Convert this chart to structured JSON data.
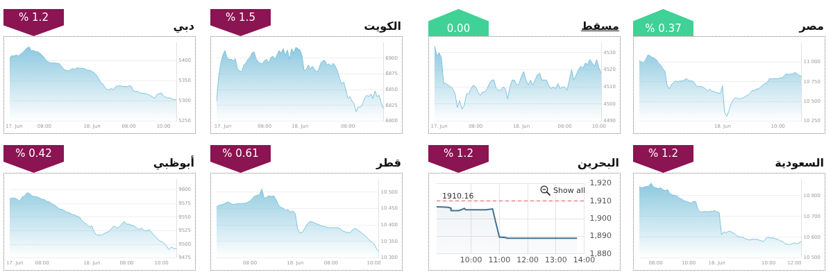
{
  "chart_data": [
    {
      "type": "area",
      "title": "دبي",
      "annotations": [
        "% 1.2"
      ],
      "categories": [
        null,
        null,
        "17. Jun",
        null,
        null,
        null,
        null,
        null,
        null,
        null,
        null,
        null,
        null,
        null,
        null,
        null,
        "08:00",
        null,
        null,
        null,
        null,
        null,
        null,
        null,
        null,
        null,
        null,
        null,
        null,
        null,
        null,
        null,
        null,
        null,
        null,
        null,
        null,
        null,
        "18. Jun",
        null,
        null,
        null,
        null,
        null,
        null,
        null,
        null,
        null,
        null,
        null,
        null,
        null,
        null,
        null,
        null,
        "08:00",
        null,
        null,
        null,
        null,
        null,
        null,
        null,
        null,
        null,
        null,
        null,
        null,
        null,
        null,
        null,
        "10:00",
        null,
        null,
        null,
        null,
        null,
        null
      ],
      "values": [
        5407,
        5412,
        5411,
        5414,
        5411,
        5416,
        5420,
        5426,
        5431,
        5434,
        5424,
        5425,
        5422,
        5422,
        5418,
        5413,
        5407,
        5399,
        5396,
        5394,
        5394,
        5394,
        5393,
        5392,
        5385,
        5378,
        5376,
        5374,
        5377,
        5380,
        5378,
        5382,
        5381,
        5381,
        5381,
        5378,
        5376,
        5376,
        5373,
        5370,
        5364,
        5356,
        5346,
        5342,
        5333,
        5328,
        5328,
        5331,
        5328,
        5336,
        5337,
        5338,
        5336,
        5336,
        5335,
        5337,
        5337,
        5327,
        5323,
        5324,
        5320,
        5319,
        5319,
        5318,
        5316,
        5313,
        5310,
        5307,
        5316,
        5318,
        5320,
        5313,
        5309,
        5307,
        5308,
        5305,
        5303,
        5303
      ],
      "color": "#80c3dc",
      "ylim": [
        5250,
        5445
      ],
      "yticks": [
        5250,
        5300,
        5350,
        5400
      ],
      "grid": "y"
    },
    {
      "type": "area",
      "title": "الكويت",
      "annotations": [
        "% 1.5"
      ],
      "categories": [
        null,
        null,
        null,
        "17. Jun",
        null,
        null,
        null,
        null,
        null,
        null,
        null,
        null,
        null,
        null,
        null,
        null,
        null,
        null,
        null,
        null,
        null,
        null,
        null,
        "08:00",
        null,
        null,
        null,
        null,
        null,
        null,
        null,
        null,
        null,
        null,
        null,
        null,
        null,
        null,
        null,
        null,
        "18. Jun",
        null,
        null,
        null,
        null,
        null,
        null,
        null,
        null,
        null,
        null,
        null,
        null,
        null,
        null,
        null,
        null,
        null,
        null,
        null,
        null,
        null,
        null,
        "08:00",
        null,
        null,
        null,
        null,
        null,
        null,
        null,
        null,
        null,
        null,
        null,
        null,
        null,
        null,
        null,
        null,
        null
      ],
      "values": [
        6832,
        6871,
        6892,
        6905,
        6912,
        6901,
        6898,
        6898,
        6896,
        6899,
        6883,
        6880,
        6878,
        6889,
        6892,
        6898,
        6901,
        6908,
        6910,
        6899,
        6894,
        6892,
        6891,
        6896,
        6898,
        6892,
        6901,
        6903,
        6898,
        6905,
        6912,
        6908,
        6915,
        6904,
        6913,
        6898,
        6915,
        6908,
        6917,
        6915,
        6913,
        6904,
        6880,
        6882,
        6889,
        6883,
        6887,
        6882,
        6878,
        6882,
        6892,
        6896,
        6896,
        6889,
        6891,
        6887,
        6892,
        6887,
        6880,
        6868,
        6859,
        6862,
        6850,
        6836,
        6839,
        6832,
        6827,
        6815,
        6823,
        6822,
        6827,
        6836,
        6841,
        6839,
        6843,
        6836,
        6848,
        6839,
        6841,
        6829,
        6820
      ],
      "color": "#80c3dc",
      "ylim": [
        6800,
        6925
      ],
      "yticks": [
        6800,
        6825,
        6850,
        6875,
        6900
      ],
      "grid": "y"
    },
    {
      "type": "area",
      "title": "مسقط",
      "annotations": [
        "0.00"
      ],
      "categories": [
        null,
        null,
        "17. Jun",
        null,
        null,
        null,
        null,
        null,
        null,
        null,
        null,
        null,
        null,
        null,
        null,
        null,
        null,
        null,
        "08:00",
        null,
        null,
        null,
        null,
        null,
        null,
        null,
        null,
        null,
        null,
        null,
        null,
        null,
        null,
        null,
        null,
        null,
        null,
        null,
        "18. Jun",
        null,
        null,
        null,
        null,
        null,
        null,
        null,
        null,
        null,
        null,
        null,
        null,
        null,
        null,
        null,
        null,
        null,
        null,
        "08:00",
        null,
        null,
        null,
        null,
        null,
        null,
        null,
        null,
        null,
        null,
        null,
        null,
        null,
        null,
        "10:00",
        null
      ],
      "values": [
        4534,
        4528,
        4530,
        4527,
        4512,
        4512,
        4511,
        4510,
        4509,
        4506,
        4498,
        4502,
        4497,
        4499,
        4506,
        4506,
        4509,
        4511,
        4510,
        4507,
        4505,
        4507,
        4507,
        4509,
        4512,
        4514,
        4514,
        4509,
        4508,
        4508,
        4510,
        4509,
        4503,
        4510,
        4514,
        4514,
        4511,
        4512,
        4516,
        4519,
        4514,
        4511,
        4514,
        4511,
        4514,
        4517,
        4518,
        4514,
        4514,
        4514,
        4511,
        4509,
        4510,
        4509,
        4512,
        4509,
        4510,
        4510,
        4508,
        4514,
        4520,
        4514,
        4517,
        4520,
        4522,
        4521,
        4524,
        4523,
        4526,
        4524,
        4522,
        4526,
        4521,
        4518
      ],
      "color": "#80c3dc",
      "ylim": [
        4490,
        4536
      ],
      "yticks": [
        4490,
        4500,
        4510,
        4520,
        4530
      ],
      "grid": "y"
    },
    {
      "type": "area",
      "title": "مصر",
      "annotations": [
        "% 0.37"
      ],
      "categories": [
        null,
        null,
        null,
        null,
        null,
        null,
        null,
        null,
        null,
        null,
        null,
        null,
        null,
        null,
        null,
        null,
        null,
        null,
        null,
        null,
        null,
        null,
        null,
        null,
        null,
        null,
        null,
        null,
        null,
        null,
        null,
        null,
        null,
        null,
        null,
        null,
        null,
        null,
        null,
        "18. Jun",
        null,
        null,
        null,
        null,
        null,
        null,
        null,
        null,
        null,
        null,
        null,
        null,
        null,
        null,
        null,
        null,
        null,
        null,
        null,
        null,
        null,
        null,
        null,
        null,
        null,
        "10:00",
        null,
        null,
        null,
        null,
        null,
        null,
        null,
        null,
        null,
        null,
        null
      ],
      "values": [
        11020,
        11000,
        10990,
        11030,
        11090,
        11080,
        11060,
        11050,
        11030,
        10990,
        10960,
        10920,
        10880,
        10710,
        10660,
        10710,
        10740,
        10760,
        10750,
        10760,
        10760,
        10770,
        10790,
        10770,
        10760,
        10760,
        10730,
        10690,
        10690,
        10690,
        10680,
        10660,
        10630,
        10660,
        10630,
        10630,
        10610,
        10610,
        10600,
        10700,
        10360,
        10310,
        10380,
        10470,
        10520,
        10550,
        10540,
        10530,
        10540,
        10550,
        10570,
        10580,
        10610,
        10640,
        10640,
        10660,
        10660,
        10690,
        10710,
        10730,
        10740,
        10790,
        10790,
        10790,
        10790,
        10790,
        10800,
        10800,
        10830,
        10850,
        10840,
        10850,
        10850,
        10870,
        10850,
        10830,
        10820
      ],
      "color": "#80c3dc",
      "ylim": [
        10250,
        11250
      ],
      "yticks": [
        {
          "value": 10250,
          "label": "10 250"
        },
        {
          "value": 10500,
          "label": "10 500"
        },
        {
          "value": 10750,
          "label": "10 750"
        },
        {
          "value": 11000,
          "label": "11 000"
        }
      ],
      "grid": "y"
    },
    {
      "type": "area",
      "title": "أبوظبي",
      "annotations": [
        "% 0.42"
      ],
      "categories": [
        null,
        null,
        "17. Jun",
        null,
        null,
        null,
        null,
        null,
        null,
        null,
        null,
        null,
        null,
        "08:00",
        null,
        null,
        null,
        null,
        null,
        null,
        null,
        null,
        null,
        null,
        null,
        null,
        null,
        null,
        null,
        null,
        null,
        null,
        null,
        "18. Jun",
        null,
        null,
        null,
        null,
        null,
        null,
        null,
        null,
        null,
        null,
        null,
        null,
        null,
        "08:00",
        null,
        null,
        null,
        null,
        null,
        null,
        null,
        null,
        null,
        null,
        null,
        null,
        null,
        "10:00",
        null,
        null,
        null,
        null,
        null,
        null
      ],
      "values": [
        9584,
        9585,
        9585,
        9583,
        9579,
        9587,
        9589,
        9595,
        9593,
        9589,
        9588,
        9587,
        9585,
        9583,
        9582,
        9579,
        9578,
        9574,
        9572,
        9569,
        9565,
        9564,
        9562,
        9559,
        9558,
        9555,
        9554,
        9552,
        9550,
        9544,
        9540,
        9536,
        9532,
        9534,
        9522,
        9517,
        9517,
        9517,
        9520,
        9522,
        9524,
        9530,
        9534,
        9530,
        9532,
        9537,
        9542,
        9537,
        9537,
        9535,
        9534,
        9530,
        9527,
        9530,
        9525,
        9525,
        9527,
        9522,
        9517,
        9512,
        9507,
        9505,
        9502,
        9497,
        9490,
        9495,
        9492,
        9492
      ],
      "color": "#80c3dc",
      "ylim": [
        9475,
        9620
      ],
      "yticks": [
        9475,
        9500,
        9525,
        9550,
        9575,
        9600
      ],
      "grid": "y"
    },
    {
      "type": "area",
      "title": "قطر",
      "annotations": [
        "% 0.61"
      ],
      "categories": [
        null,
        null,
        null,
        null,
        null,
        null,
        null,
        null,
        null,
        null,
        null,
        null,
        null,
        null,
        "08:00",
        null,
        null,
        null,
        null,
        null,
        null,
        null,
        null,
        null,
        null,
        null,
        null,
        null,
        null,
        null,
        null,
        null,
        null,
        "18. Jun",
        null,
        null,
        null,
        null,
        null,
        null,
        null,
        null,
        null,
        null,
        null,
        null,
        null,
        null,
        "08:00",
        null,
        null,
        null,
        null,
        null,
        null,
        null,
        null,
        null,
        null,
        null,
        null,
        null,
        null,
        null,
        null,
        null,
        "10:00",
        null,
        null
      ],
      "values": [
        10456,
        10460,
        10462,
        10464,
        10468,
        10471,
        10465,
        10463,
        10464,
        10465,
        10465,
        10466,
        10466,
        10469,
        10473,
        10481,
        10488,
        10490,
        10493,
        10510,
        10481,
        10485,
        10489,
        10487,
        10489,
        10477,
        10460,
        10454,
        10451,
        10445,
        10447,
        10440,
        10443,
        10435,
        10388,
        10376,
        10378,
        10390,
        10403,
        10410,
        10410,
        10407,
        10404,
        10401,
        10397,
        10396,
        10394,
        10392,
        10392,
        10392,
        10392,
        10392,
        10388,
        10382,
        10379,
        10377,
        10377,
        10385,
        10390,
        10387,
        10381,
        10375,
        10369,
        10363,
        10355,
        10349,
        10343,
        10329,
        10319
      ],
      "color": "#80c3dc",
      "ylim": [
        10300,
        10540
      ],
      "yticks": [
        {
          "value": 10300,
          "label": "10 300"
        },
        {
          "value": 10350,
          "label": "10 350"
        },
        {
          "value": 10400,
          "label": "10 400"
        },
        {
          "value": 10450,
          "label": "10 450"
        },
        {
          "value": 10500,
          "label": "10 500"
        }
      ],
      "grid": "y"
    },
    {
      "type": "area",
      "title": "البحرين",
      "annotations": [
        "% 1.2",
        "Show all"
      ],
      "x": [
        8.78,
        9.0,
        9.19,
        9.28,
        9.29,
        9.55,
        9.68,
        9.77,
        9.8,
        10.17,
        10.53,
        10.76,
        10.85,
        11.0,
        11.07,
        11.25,
        11.27,
        13.75
      ],
      "values": [
        1906.8,
        1906.7,
        1906.5,
        1906.1,
        1904.6,
        1904.6,
        1905.3,
        1905.9,
        1905.1,
        1905.1,
        1905.1,
        1905.6,
        1899.5,
        1889.5,
        1889.5,
        1889.2,
        1888.9,
        1888.9
      ],
      "color": "#41728f",
      "xlim": [
        8.78,
        14
      ],
      "xticks": [
        {
          "value": 10,
          "label": "10:00"
        },
        {
          "value": 11,
          "label": "11:00"
        },
        {
          "value": 12,
          "label": "12:00"
        },
        {
          "value": 13,
          "label": "13:00"
        },
        {
          "value": 14,
          "label": "14:00"
        }
      ],
      "ylim": [
        1880,
        1920
      ],
      "yticks": [
        {
          "value": 1880,
          "label": "1,880"
        },
        {
          "value": 1890,
          "label": "1,890"
        },
        {
          "value": 1900,
          "label": "1,900"
        },
        {
          "value": 1910,
          "label": "1,910"
        },
        {
          "value": 1920,
          "label": "1,920"
        }
      ],
      "grid": true,
      "ref_lines": [
        {
          "axis": "y",
          "value": 1910.16,
          "label": "1910.16",
          "color": "#e05561",
          "line_style": "dashed"
        }
      ]
    },
    {
      "type": "area",
      "title": "السعودية",
      "annotations": [
        "% 1.2"
      ],
      "categories": [
        null,
        null,
        null,
        null,
        null,
        null,
        null,
        "08:00",
        null,
        null,
        null,
        null,
        null,
        null,
        null,
        null,
        null,
        null,
        null,
        null,
        null,
        "10:00",
        null,
        null,
        null,
        null,
        null,
        null,
        null,
        null,
        null,
        null,
        null,
        "18. Jun",
        null,
        null,
        null,
        null,
        null,
        null,
        null,
        null,
        null,
        null,
        null,
        null,
        null,
        null,
        null,
        null,
        null,
        null,
        null,
        null,
        null,
        "10:00",
        null,
        null,
        null,
        null,
        null,
        null,
        null,
        null,
        null,
        null,
        "12:00",
        null,
        null,
        null
      ],
      "values": [
        10844,
        10838,
        10842,
        10844,
        10846,
        10860,
        10842,
        10838,
        10834,
        10838,
        10830,
        10824,
        10830,
        10810,
        10804,
        10802,
        10798,
        10788,
        10784,
        10776,
        10772,
        10768,
        10764,
        10772,
        10772,
        10732,
        10722,
        10722,
        10724,
        10722,
        10724,
        10724,
        10728,
        10722,
        10718,
        10612,
        10626,
        10620,
        10630,
        10626,
        10620,
        10612,
        10604,
        10600,
        10600,
        10592,
        10590,
        10586,
        10590,
        10590,
        10590,
        10586,
        10582,
        10580,
        10596,
        10600,
        10596,
        10596,
        10592,
        10590,
        10582,
        10580,
        10568,
        10566,
        10564,
        10568,
        10572,
        10568,
        10572,
        10580
      ],
      "color": "#80c3dc",
      "ylim": [
        10500,
        10880
      ],
      "yticks": [
        {
          "value": 10500,
          "label": "10 500"
        },
        {
          "value": 10600,
          "label": "10 600"
        },
        {
          "value": 10700,
          "label": "10 700"
        },
        {
          "value": 10800,
          "label": "10 800"
        }
      ],
      "grid": "y"
    }
  ]
}
